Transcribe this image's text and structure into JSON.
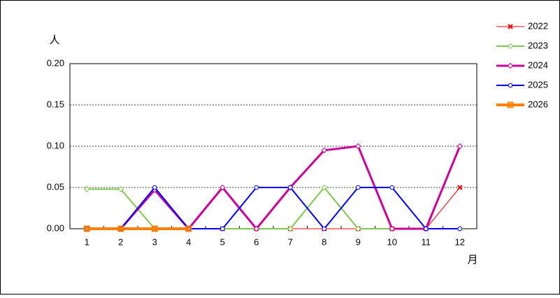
{
  "chart_data": {
    "type": "line",
    "y_label": "人",
    "x_label": "月",
    "categories": [
      "1",
      "2",
      "3",
      "4",
      "5",
      "6",
      "7",
      "8",
      "9",
      "10",
      "11",
      "12"
    ],
    "ylim": [
      0,
      0.2
    ],
    "yticks": [
      {
        "value": 0,
        "label": "0.00"
      },
      {
        "value": 0.05,
        "label": "0.05"
      },
      {
        "value": 0.1,
        "label": "0.10"
      },
      {
        "value": 0.15,
        "label": "0.15"
      },
      {
        "value": 0.2,
        "label": "0.20"
      }
    ],
    "grid": true,
    "legend": "right",
    "series": [
      {
        "name": "2022",
        "color": "#ff0000",
        "marker": "x",
        "width": 1,
        "values": [
          0,
          0,
          0,
          0,
          0,
          0,
          0,
          0,
          0,
          0,
          0,
          0.05
        ]
      },
      {
        "name": "2023",
        "color": "#7fc64e",
        "marker": "diamond",
        "width": 2,
        "values": [
          0.048,
          0.048,
          0,
          0,
          0,
          0,
          0,
          0.05,
          0,
          0,
          0,
          0
        ]
      },
      {
        "name": "2024",
        "color": "#cc0099",
        "marker": "diamond",
        "width": 3,
        "values": [
          0,
          0,
          0.047,
          0,
          0.05,
          0,
          0.05,
          0.095,
          0.1,
          0,
          0,
          0.1
        ]
      },
      {
        "name": "2025",
        "color": "#0000ff",
        "marker": "circle",
        "width": 2,
        "values": [
          0,
          0,
          0.05,
          0,
          0,
          0.05,
          0.05,
          0,
          0.05,
          0.05,
          0,
          0
        ]
      },
      {
        "name": "2026",
        "color": "#ff8000",
        "marker": "square",
        "width": 4,
        "values": [
          0,
          0,
          0,
          0,
          null,
          null,
          null,
          null,
          null,
          null,
          null,
          null
        ]
      }
    ]
  }
}
